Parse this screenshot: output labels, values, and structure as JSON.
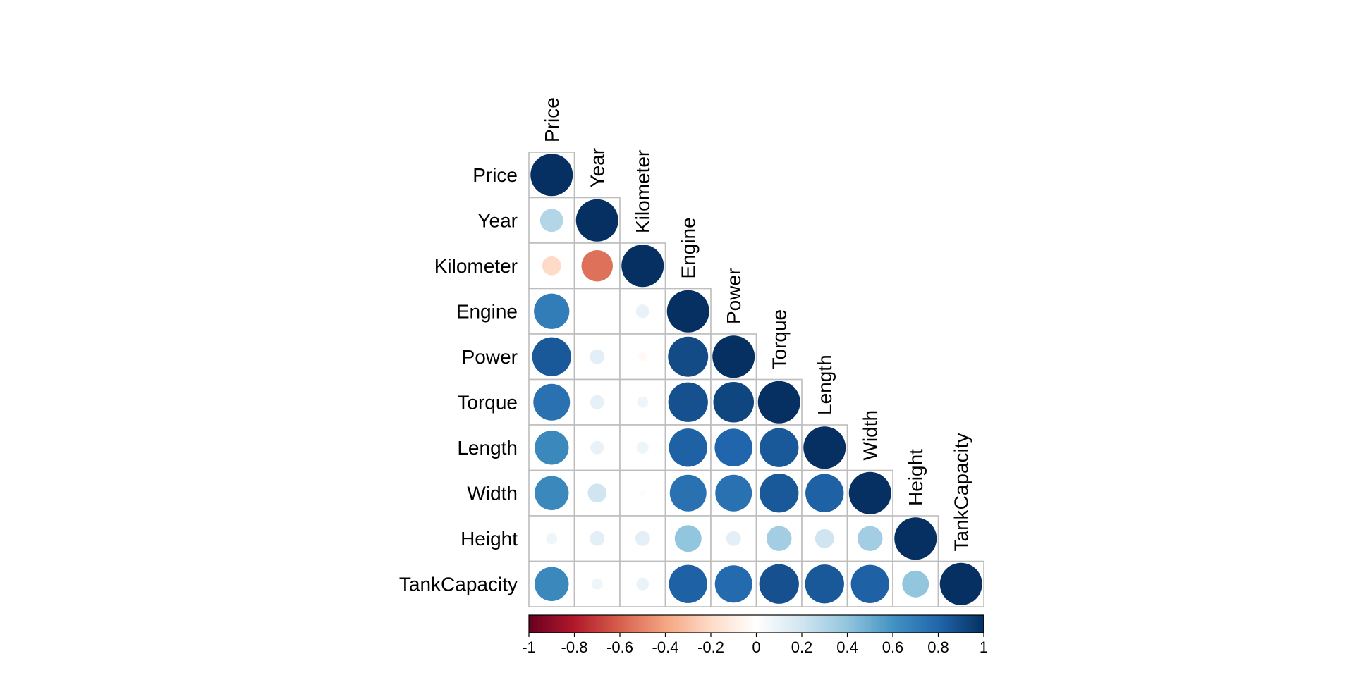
{
  "chart_data": {
    "type": "heatmap",
    "variables": [
      "Price",
      "Year",
      "Kilometer",
      "Engine",
      "Power",
      "Torque",
      "Length",
      "Width",
      "Height",
      "TankCapacity"
    ],
    "matrix": [
      [
        1.0,
        0.3,
        -0.2,
        0.7,
        0.85,
        0.75,
        0.65,
        0.65,
        0.07,
        0.65
      ],
      [
        0.3,
        1.0,
        -0.55,
        0.0,
        0.12,
        0.11,
        0.1,
        0.2,
        0.12,
        0.07
      ],
      [
        -0.2,
        -0.55,
        1.0,
        0.1,
        -0.04,
        0.07,
        0.08,
        0.02,
        0.12,
        0.09
      ],
      [
        0.7,
        0.0,
        0.1,
        1.0,
        0.9,
        0.88,
        0.82,
        0.75,
        0.4,
        0.82
      ],
      [
        0.85,
        0.12,
        -0.04,
        0.9,
        1.0,
        0.92,
        0.8,
        0.75,
        0.12,
        0.78
      ],
      [
        0.75,
        0.11,
        0.07,
        0.88,
        0.92,
        1.0,
        0.85,
        0.85,
        0.35,
        0.88
      ],
      [
        0.65,
        0.1,
        0.08,
        0.82,
        0.8,
        0.85,
        1.0,
        0.82,
        0.2,
        0.85
      ],
      [
        0.65,
        0.2,
        0.02,
        0.75,
        0.75,
        0.85,
        0.82,
        1.0,
        0.35,
        0.82
      ],
      [
        0.07,
        0.12,
        0.12,
        0.4,
        0.12,
        0.35,
        0.2,
        0.35,
        1.0,
        0.4
      ],
      [
        0.65,
        0.07,
        0.09,
        0.82,
        0.78,
        0.88,
        0.85,
        0.82,
        0.4,
        1.0
      ]
    ],
    "layout": "lower-triangle",
    "method": "circle",
    "colorbar": {
      "range": [
        -1,
        1
      ],
      "ticks": [
        "-1",
        "-0.8",
        "-0.6",
        "-0.4",
        "-0.2",
        "0",
        "0.2",
        "0.4",
        "0.6",
        "0.8",
        "1"
      ],
      "colors": [
        "#67001F",
        "#B2182B",
        "#D6604D",
        "#F4A582",
        "#FDDBC7",
        "#FFFFFF",
        "#D1E5F0",
        "#92C5DE",
        "#4393C3",
        "#2166AC",
        "#053061"
      ]
    }
  }
}
